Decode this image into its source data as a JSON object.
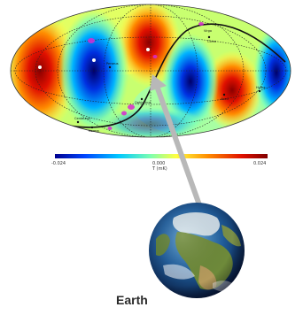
{
  "colorbar": {
    "min_label": "-0.024",
    "mid_label": "0.000",
    "max_label": "0.024",
    "unit_label": "T (mK)",
    "colors": [
      "#00008f",
      "#0044ff",
      "#00c8ff",
      "#7dffb0",
      "#ffff40",
      "#ff8c00",
      "#e01000",
      "#800000"
    ]
  },
  "sky_map": {
    "pattern": "alternating red/blue lobes (quadrupole/octopole anisotropy) on Mollweide projection",
    "point_sources": [
      "Virgo",
      "Perseus",
      "Centaurus",
      "Norma",
      "Coma",
      "Hydra",
      "Abell",
      "Ophiuchus"
    ]
  },
  "earth": {
    "label": "Earth"
  },
  "colors": {
    "arrow": "#b8b8b8",
    "ecliptic_line": "#111111",
    "graticule": "#222222"
  }
}
